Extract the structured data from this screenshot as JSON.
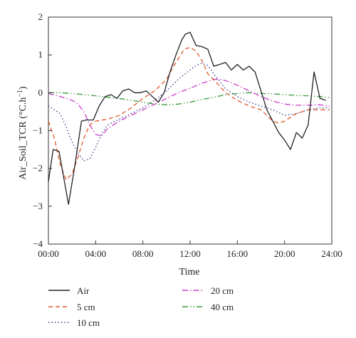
{
  "chart_data": {
    "type": "line",
    "title": "",
    "xlabel": "Time",
    "ylabel": "Air_Soil_TCR (°C.h",
    "ylabel_sup": "−1",
    "ylabel_tail": ")",
    "xlim": [
      0,
      24
    ],
    "ylim": [
      -4,
      2
    ],
    "x_ticks": [
      0,
      4,
      8,
      12,
      16,
      20,
      24
    ],
    "x_tick_labels": [
      "00:00",
      "04:00",
      "08:00",
      "12:00",
      "16:00",
      "20:00",
      "24:00"
    ],
    "y_ticks": [
      -4,
      -3,
      -2,
      -1,
      0,
      1,
      2
    ],
    "y_tick_labels": [
      "−4",
      "−3",
      "−2",
      "−1",
      "0",
      "1",
      "2"
    ],
    "grid": false,
    "legend_position": "bottom",
    "series": [
      {
        "name": "Air",
        "color": "#222222",
        "dash": "solid",
        "x": [
          0,
          0.4,
          0.9,
          1.7,
          2.2,
          2.8,
          3.2,
          3.8,
          4.3,
          4.8,
          5.3,
          5.8,
          6.3,
          6.8,
          7.3,
          7.8,
          8.3,
          8.8,
          9.3,
          9.8,
          10.3,
          10.8,
          11.3,
          11.6,
          12.0,
          12.5,
          13.0,
          13.5,
          14.0,
          14.5,
          15.0,
          15.5,
          16.0,
          16.5,
          17.0,
          17.5,
          18.0,
          18.5,
          19.0,
          19.5,
          20.0,
          20.5,
          21.0,
          21.5,
          22.0,
          22.5,
          23.0,
          23.5
        ],
        "y": [
          -2.35,
          -1.5,
          -1.55,
          -2.95,
          -2.0,
          -0.75,
          -0.72,
          -0.72,
          -0.35,
          -0.1,
          -0.05,
          -0.15,
          0.05,
          0.1,
          0.0,
          0.0,
          0.05,
          -0.1,
          -0.25,
          0.0,
          0.55,
          1.0,
          1.4,
          1.55,
          1.6,
          1.25,
          1.22,
          1.15,
          0.7,
          0.75,
          0.8,
          0.6,
          0.75,
          0.6,
          0.7,
          0.55,
          0.05,
          -0.45,
          -0.75,
          -1.05,
          -1.25,
          -1.5,
          -1.05,
          -1.2,
          -0.85,
          0.55,
          -0.15,
          -0.2
        ]
      },
      {
        "name": "5 cm",
        "color": "#e2572a",
        "dash": "6,4",
        "x": [
          0,
          0.5,
          1.0,
          1.5,
          2.0,
          2.5,
          3.0,
          3.5,
          4.0,
          5.0,
          6.0,
          7.0,
          8.0,
          9.0,
          9.5,
          10.0,
          10.5,
          11.0,
          11.5,
          12.0,
          12.5,
          13.0,
          13.5,
          14.0,
          15.0,
          16.0,
          17.0,
          18.0,
          18.5,
          19.0,
          19.5,
          20.0,
          21.0,
          22.0,
          23.0,
          23.8
        ],
        "y": [
          -0.75,
          -1.2,
          -1.9,
          -2.3,
          -2.15,
          -1.7,
          -1.2,
          -0.85,
          -0.75,
          -0.7,
          -0.6,
          -0.4,
          -0.15,
          0.05,
          0.2,
          0.35,
          0.65,
          0.9,
          1.15,
          1.2,
          1.1,
          0.85,
          0.5,
          0.35,
          0.0,
          -0.2,
          -0.35,
          -0.45,
          -0.6,
          -0.75,
          -0.8,
          -0.75,
          -0.55,
          -0.45,
          -0.45,
          -0.45
        ]
      },
      {
        "name": "10 cm",
        "color": "#3a3a8c",
        "dash": "1.5,3",
        "x": [
          0,
          1.0,
          1.5,
          2.0,
          2.5,
          3.0,
          3.5,
          4.0,
          4.5,
          5.0,
          6.0,
          7.0,
          8.0,
          9.0,
          10.0,
          11.0,
          12.0,
          12.5,
          13.0,
          13.5,
          14.0,
          15.0,
          16.0,
          17.0,
          18.0,
          19.0,
          20.0,
          21.0,
          22.0,
          23.0,
          23.8
        ],
        "y": [
          -0.35,
          -0.55,
          -0.9,
          -1.3,
          -1.6,
          -1.8,
          -1.75,
          -1.45,
          -1.1,
          -0.85,
          -0.7,
          -0.55,
          -0.4,
          -0.2,
          0.05,
          0.35,
          0.6,
          0.72,
          0.78,
          0.72,
          0.5,
          0.1,
          -0.1,
          -0.25,
          -0.35,
          -0.45,
          -0.6,
          -0.55,
          -0.45,
          -0.4,
          -0.4
        ]
      },
      {
        "name": "20 cm",
        "color": "#c83ec8",
        "dash": "8,3,1.5,3",
        "x": [
          0,
          1.0,
          2.0,
          2.5,
          3.0,
          3.5,
          4.0,
          4.5,
          5.0,
          6.0,
          7.0,
          8.0,
          9.0,
          10.0,
          11.0,
          12.0,
          13.0,
          14.0,
          14.5,
          15.0,
          16.0,
          17.0,
          18.0,
          19.0,
          20.0,
          21.0,
          22.0,
          23.0,
          23.8
        ],
        "y": [
          -0.02,
          -0.1,
          -0.2,
          -0.3,
          -0.5,
          -0.85,
          -1.1,
          -1.15,
          -0.95,
          -0.75,
          -0.6,
          -0.45,
          -0.3,
          -0.15,
          0.0,
          0.12,
          0.25,
          0.35,
          0.36,
          0.32,
          0.2,
          0.05,
          -0.1,
          -0.22,
          -0.3,
          -0.33,
          -0.33,
          -0.32,
          -0.35
        ]
      },
      {
        "name": "40 cm",
        "color": "#3a9a3a",
        "dash": "8,3,1.5,3,1.5,3",
        "x": [
          0,
          1.0,
          2.0,
          3.0,
          4.0,
          5.0,
          6.0,
          7.0,
          8.0,
          9.0,
          10.0,
          11.0,
          12.0,
          13.0,
          14.0,
          15.0,
          16.0,
          17.0,
          18.0,
          19.0,
          20.0,
          21.0,
          22.0,
          23.0,
          23.8
        ],
        "y": [
          0.0,
          0.0,
          -0.02,
          -0.05,
          -0.08,
          -0.12,
          -0.15,
          -0.2,
          -0.25,
          -0.3,
          -0.32,
          -0.3,
          -0.25,
          -0.18,
          -0.12,
          -0.05,
          -0.02,
          0.0,
          -0.02,
          -0.03,
          -0.05,
          -0.07,
          -0.08,
          -0.1,
          -0.13
        ]
      }
    ]
  }
}
